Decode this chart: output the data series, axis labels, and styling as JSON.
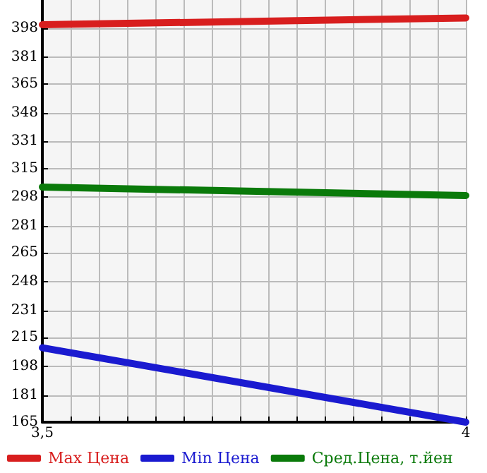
{
  "chart_data": {
    "type": "line",
    "x": [
      3.5,
      4
    ],
    "series": [
      {
        "name": "Max Цена",
        "color": "#d81e1e",
        "values": [
          400,
          404
        ]
      },
      {
        "name": "Min Цена",
        "color": "#1a1ad0",
        "values": [
          209,
          165
        ]
      },
      {
        "name": "Сред.Цена, т.йен",
        "color": "#0a7a0a",
        "values": [
          304,
          299
        ]
      }
    ],
    "xlim": [
      3.5,
      4
    ],
    "xticks": [
      {
        "value": 3.5,
        "label": "3,5"
      },
      {
        "value": 3.5333,
        "label": null
      },
      {
        "value": 3.5667,
        "label": null
      },
      {
        "value": 3.6,
        "label": null
      },
      {
        "value": 3.6333,
        "label": null
      },
      {
        "value": 3.6667,
        "label": null
      },
      {
        "value": 3.7,
        "label": null
      },
      {
        "value": 3.7333,
        "label": null
      },
      {
        "value": 3.7667,
        "label": null
      },
      {
        "value": 3.8,
        "label": null
      },
      {
        "value": 3.8333,
        "label": null
      },
      {
        "value": 3.8667,
        "label": null
      },
      {
        "value": 3.9,
        "label": null
      },
      {
        "value": 3.9333,
        "label": null
      },
      {
        "value": 3.9667,
        "label": null
      },
      {
        "value": 4,
        "label": "4"
      }
    ],
    "ylim": [
      165,
      414.6
    ],
    "yticks": [
      165,
      181,
      198,
      215,
      231,
      248,
      265,
      281,
      298,
      315,
      331,
      348,
      365,
      381,
      398
    ],
    "grid": true,
    "legend": "bottom",
    "marker": "none",
    "line_style": "solid"
  }
}
